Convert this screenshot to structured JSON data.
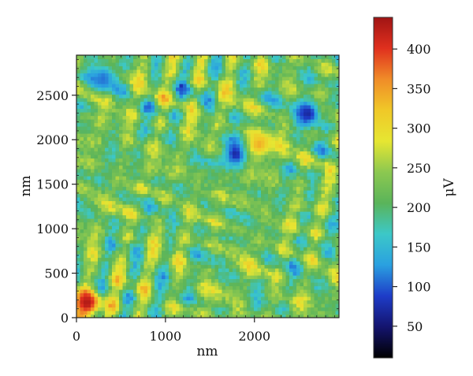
{
  "chart_data": {
    "type": "heatmap",
    "title": "",
    "xlabel": "nm",
    "ylabel": "nm",
    "xlim": [
      0,
      2950
    ],
    "ylim": [
      0,
      2950
    ],
    "x_ticks": [
      0,
      1000,
      2000
    ],
    "x_tick_labels": [
      "0",
      "1000",
      "2000"
    ],
    "y_ticks": [
      0,
      500,
      1000,
      1500,
      2000,
      2500
    ],
    "y_tick_labels": [
      "0",
      "500",
      "1000",
      "1500",
      "2000",
      "2500"
    ],
    "colorbar": {
      "label": "μV",
      "range": [
        10,
        440
      ],
      "ticks": [
        50,
        100,
        150,
        200,
        250,
        300,
        350,
        400
      ],
      "tick_labels": [
        "50",
        "100",
        "150",
        "200",
        "250",
        "300",
        "350",
        "400"
      ],
      "colormap": [
        "#000000",
        "#14146e",
        "#1e3cc8",
        "#2aa0e0",
        "#3cc8c8",
        "#5ab45a",
        "#8cc850",
        "#e6e632",
        "#f0c828",
        "#f08c28",
        "#e0301e",
        "#a01414"
      ]
    },
    "typical_value": 220,
    "notable_features": [
      {
        "x": 120,
        "y": 170,
        "value": 430,
        "note": "high-signal patch near origin"
      },
      {
        "x": 300,
        "y": 2700,
        "value": 110,
        "note": "low-signal grain"
      },
      {
        "x": 1800,
        "y": 1850,
        "value": 60,
        "note": "low-signal grain"
      },
      {
        "x": 2050,
        "y": 1950,
        "value": 340,
        "note": "high-signal spot"
      },
      {
        "x": 2600,
        "y": 2300,
        "value": 70,
        "note": "low-signal grain"
      }
    ]
  }
}
